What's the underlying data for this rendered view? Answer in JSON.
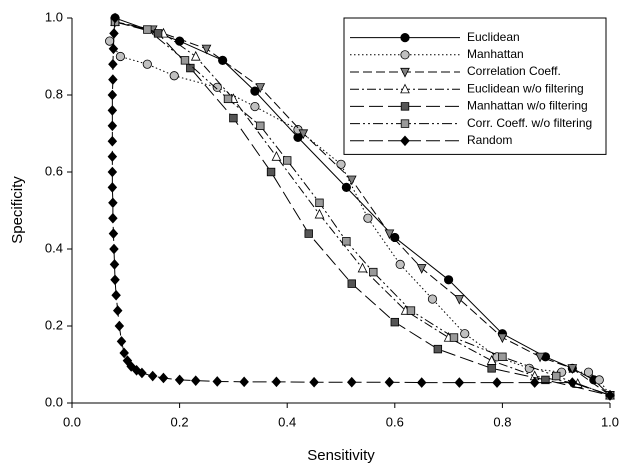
{
  "chart_data": {
    "type": "scatter-line",
    "x_label": "Sensitivity",
    "y_label": "Specificity",
    "xlim": [
      0,
      1
    ],
    "ylim": [
      0,
      1
    ],
    "xticks": [
      {
        "value": 0,
        "label": "0.0"
      },
      0.2,
      0.4,
      0.6,
      0.8,
      {
        "value": 1,
        "label": "1.0"
      }
    ],
    "yticks": [
      {
        "value": 0,
        "label": "0.0"
      },
      0.2,
      0.4,
      0.6,
      0.8,
      {
        "value": 1,
        "label": "1.0"
      }
    ],
    "legend": "upper right",
    "series": [
      {
        "name": "Euclidean",
        "color": "#000000",
        "marker": "circle",
        "dash": "solid",
        "x": [
          0.08,
          0.2,
          0.28,
          0.34,
          0.42,
          0.51,
          0.6,
          0.7,
          0.8,
          0.88,
          0.93,
          0.97,
          1.0
        ],
        "values": [
          1.0,
          0.94,
          0.89,
          0.81,
          0.69,
          0.56,
          0.43,
          0.32,
          0.18,
          0.12,
          0.09,
          0.06,
          0.02
        ]
      },
      {
        "name": "Manhattan",
        "color": "#c0c0c0",
        "marker": "circle",
        "dash": "dotted",
        "x": [
          0.07,
          0.09,
          0.14,
          0.19,
          0.27,
          0.34,
          0.42,
          0.5,
          0.55,
          0.61,
          0.67,
          0.73,
          0.79,
          0.85,
          0.91,
          0.96,
          0.98,
          1.0
        ],
        "values": [
          0.94,
          0.9,
          0.88,
          0.85,
          0.82,
          0.77,
          0.71,
          0.62,
          0.48,
          0.36,
          0.27,
          0.18,
          0.12,
          0.09,
          0.08,
          0.08,
          0.06,
          0.02
        ]
      },
      {
        "name": "Correlation Coeff.",
        "color": "#808080",
        "marker": "triangle-down",
        "dash": "dashed",
        "x": [
          0.08,
          0.15,
          0.25,
          0.35,
          0.43,
          0.52,
          0.59,
          0.65,
          0.72,
          0.8,
          0.87,
          0.93,
          1.0
        ],
        "values": [
          0.99,
          0.97,
          0.92,
          0.82,
          0.7,
          0.58,
          0.44,
          0.35,
          0.27,
          0.17,
          0.12,
          0.09,
          0.02
        ]
      },
      {
        "name": "Euclidean w/o filtering",
        "color": "#ffffff",
        "marker": "triangle-up",
        "dash": "dash-dot",
        "x": [
          0.08,
          0.17,
          0.23,
          0.3,
          0.38,
          0.46,
          0.54,
          0.62,
          0.7,
          0.78,
          0.86,
          0.94,
          1.0
        ],
        "values": [
          0.99,
          0.96,
          0.9,
          0.79,
          0.64,
          0.49,
          0.35,
          0.24,
          0.17,
          0.11,
          0.07,
          0.05,
          0.02
        ]
      },
      {
        "name": "Manhattan w/o filtering",
        "color": "#555555",
        "marker": "square",
        "dash": "long-dash",
        "x": [
          0.08,
          0.16,
          0.22,
          0.3,
          0.37,
          0.44,
          0.52,
          0.6,
          0.68,
          0.78,
          0.88,
          1.0
        ],
        "values": [
          0.99,
          0.96,
          0.87,
          0.74,
          0.6,
          0.44,
          0.31,
          0.21,
          0.14,
          0.09,
          0.06,
          0.02
        ]
      },
      {
        "name": "Corr. Coeff. w/o filtering",
        "color": "#999999",
        "marker": "square",
        "dash": "dash-dot-dot",
        "x": [
          0.08,
          0.14,
          0.21,
          0.29,
          0.35,
          0.4,
          0.46,
          0.51,
          0.56,
          0.63,
          0.71,
          0.8,
          0.9,
          1.0
        ],
        "values": [
          0.99,
          0.97,
          0.89,
          0.79,
          0.72,
          0.63,
          0.52,
          0.42,
          0.34,
          0.24,
          0.17,
          0.12,
          0.07,
          0.02
        ]
      },
      {
        "name": "Random",
        "color": "#000000",
        "marker": "diamond",
        "dash": "long-dash",
        "x": [
          0.08,
          0.078,
          0.077,
          0.076,
          0.076,
          0.075,
          0.075,
          0.075,
          0.075,
          0.075,
          0.075,
          0.075,
          0.076,
          0.076,
          0.077,
          0.078,
          0.079,
          0.08,
          0.082,
          0.085,
          0.088,
          0.092,
          0.097,
          0.103,
          0.11,
          0.12,
          0.13,
          0.15,
          0.17,
          0.2,
          0.23,
          0.27,
          0.32,
          0.38,
          0.45,
          0.52,
          0.59,
          0.65,
          0.72,
          0.79,
          0.86,
          0.93,
          1.0
        ],
        "values": [
          1.0,
          0.96,
          0.92,
          0.88,
          0.84,
          0.8,
          0.76,
          0.72,
          0.68,
          0.64,
          0.6,
          0.56,
          0.52,
          0.48,
          0.44,
          0.4,
          0.36,
          0.32,
          0.28,
          0.24,
          0.2,
          0.16,
          0.13,
          0.11,
          0.095,
          0.085,
          0.078,
          0.07,
          0.065,
          0.06,
          0.058,
          0.056,
          0.055,
          0.055,
          0.054,
          0.054,
          0.054,
          0.053,
          0.053,
          0.053,
          0.053,
          0.053,
          0.02
        ]
      }
    ]
  }
}
